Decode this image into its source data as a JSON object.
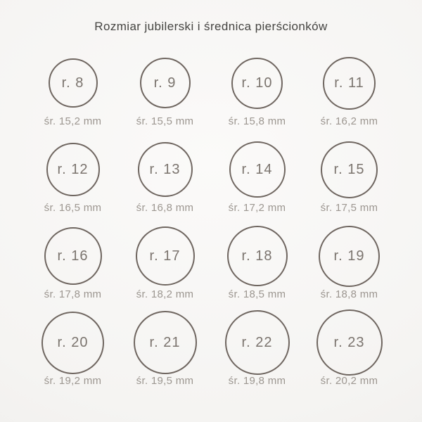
{
  "title": "Rozmiar jubilerski i średnica pierścionków",
  "colors": {
    "background_center": "#fbfaf9",
    "background_edge": "#eceae8",
    "circle_stroke": "#6f6660",
    "ring_number_text": "#7b746e",
    "diameter_label_text": "#9c9690",
    "title_text": "#454441"
  },
  "rings": [
    {
      "size_label": "r. 8",
      "diameter_label": "śr. 15,2 mm",
      "diameter_mm": 15.2
    },
    {
      "size_label": "r. 9",
      "diameter_label": "śr. 15,5 mm",
      "diameter_mm": 15.5
    },
    {
      "size_label": "r. 10",
      "diameter_label": "śr. 15,8 mm",
      "diameter_mm": 15.8
    },
    {
      "size_label": "r. 11",
      "diameter_label": "śr. 16,2 mm",
      "diameter_mm": 16.2
    },
    {
      "size_label": "r. 12",
      "diameter_label": "śr. 16,5 mm",
      "diameter_mm": 16.5
    },
    {
      "size_label": "r. 13",
      "diameter_label": "śr. 16,8 mm",
      "diameter_mm": 16.8
    },
    {
      "size_label": "r. 14",
      "diameter_label": "śr. 17,2 mm",
      "diameter_mm": 17.2
    },
    {
      "size_label": "r. 15",
      "diameter_label": "śr. 17,5 mm",
      "diameter_mm": 17.5
    },
    {
      "size_label": "r. 16",
      "diameter_label": "śr. 17,8 mm",
      "diameter_mm": 17.8
    },
    {
      "size_label": "r. 17",
      "diameter_label": "śr. 18,2 mm",
      "diameter_mm": 18.2
    },
    {
      "size_label": "r. 18",
      "diameter_label": "śr. 18,5 mm",
      "diameter_mm": 18.5
    },
    {
      "size_label": "r. 19",
      "diameter_label": "śr. 18,8 mm",
      "diameter_mm": 18.8
    },
    {
      "size_label": "r. 20",
      "diameter_label": "śr. 19,2 mm",
      "diameter_mm": 19.2
    },
    {
      "size_label": "r. 21",
      "diameter_label": "śr. 19,5 mm",
      "diameter_mm": 19.5
    },
    {
      "size_label": "r. 22",
      "diameter_label": "śr. 19,8 mm",
      "diameter_mm": 19.8
    },
    {
      "size_label": "r. 23",
      "diameter_label": "śr. 20,2 mm",
      "diameter_mm": 20.2
    }
  ]
}
